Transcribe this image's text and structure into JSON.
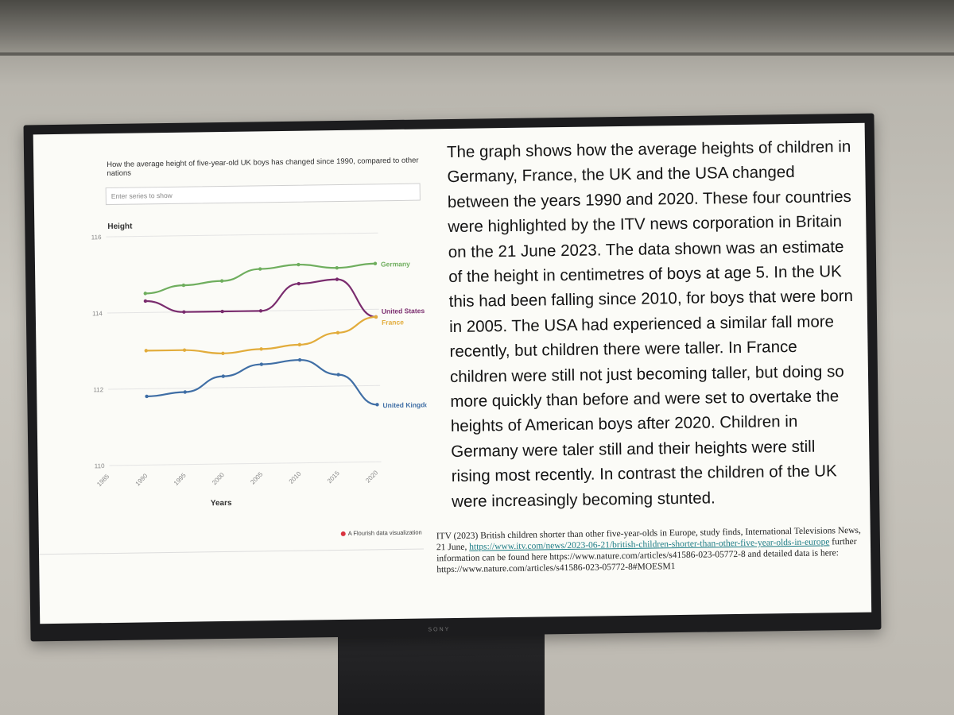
{
  "chart": {
    "title": "How the average height of five-year-old UK boys has changed since 1990, compared to other nations",
    "search_placeholder": "Enter series to show",
    "ylabel": "Height",
    "xlabel": "Years",
    "credit": "A Flourish data visualization"
  },
  "chart_data": {
    "type": "line",
    "title": "How the average height of five-year-old UK boys has changed since 1990, compared to other nations",
    "xlabel": "Years",
    "ylabel": "Height",
    "xlim": [
      1985,
      2020
    ],
    "ylim": [
      110,
      116
    ],
    "x_ticks": [
      "1985",
      "1990",
      "1995",
      "2000",
      "2005",
      "2010",
      "2015",
      "2020"
    ],
    "y_ticks": [
      "110",
      "112",
      "114",
      "116"
    ],
    "grid": true,
    "legend": "inline-right",
    "series": [
      {
        "name": "Germany",
        "color": "#6fae5e",
        "x": [
          1990,
          1995,
          2000,
          2005,
          2010,
          2015,
          2020
        ],
        "y": [
          114.5,
          114.7,
          114.8,
          115.1,
          115.2,
          115.1,
          115.2
        ]
      },
      {
        "name": "United States",
        "color": "#7a2c6e",
        "x": [
          1990,
          1995,
          2000,
          2005,
          2010,
          2015,
          2020
        ],
        "y": [
          114.3,
          114.0,
          114.0,
          114.0,
          114.7,
          114.8,
          113.8
        ]
      },
      {
        "name": "France",
        "color": "#e2ac3b",
        "x": [
          1990,
          1995,
          2000,
          2005,
          2010,
          2015,
          2020
        ],
        "y": [
          113.0,
          113.0,
          112.9,
          113.0,
          113.1,
          113.4,
          113.8
        ]
      },
      {
        "name": "United Kingdom",
        "color": "#3f6ea5",
        "x": [
          1990,
          1995,
          2000,
          2005,
          2010,
          2015,
          2020
        ],
        "y": [
          111.8,
          111.9,
          112.3,
          112.6,
          112.7,
          112.3,
          111.5
        ]
      }
    ]
  },
  "text": {
    "main": "The graph shows how the average heights of children in Germany, France, the UK and the USA changed between the years 1990 and 2020. These four countries were highlighted by the ITV news corporation in Britain on the 21 June 2023. The data shown was an estimate of the height in centimetres of boys at age 5. In the UK this had been falling since 2010, for boys that were born in 2005. The USA had experienced a similar fall more recently, but children there were taller. In France children were still not just becoming taller, but doing so more quickly than before and were set to overtake the heights of American boys after 2020. Children in Germany were taler still and their heights were still rising most recently. In contrast the children of the UK were increasingly becoming stunted.",
    "ref_prefix": "ITV (2023) British children shorter than other five-year-olds in Europe, study finds, International Televisions News, 21 June, ",
    "ref_link": "https://www.itv.com/news/2023-06-21/british-children-shorter-than-other-five-year-olds-in-europe",
    "ref_more": " further information can be found here https://www.nature.com/articles/s41586-023-05772-8 and detailed data is here: https://www.nature.com/articles/s41586-023-05772-8#MOESM1"
  },
  "tv": {
    "brand": "SONY"
  }
}
